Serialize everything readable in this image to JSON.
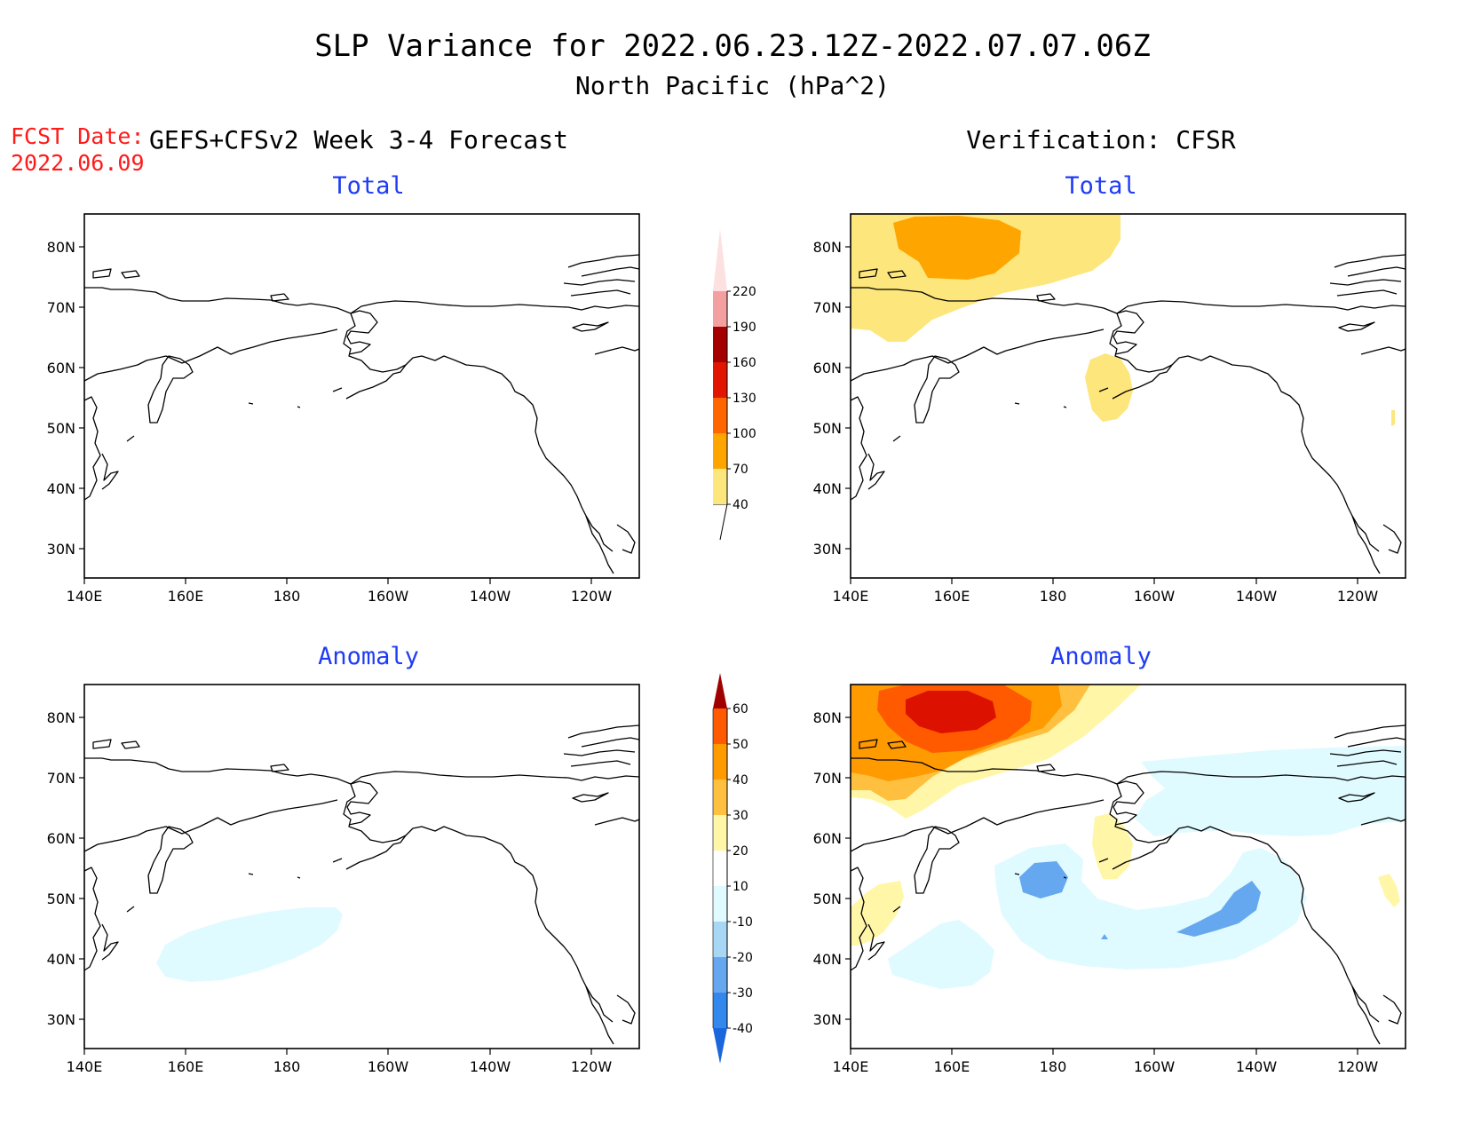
{
  "header": {
    "title": "SLP Variance for 2022.06.23.12Z-2022.07.07.06Z",
    "subtitle": "North Pacific (hPa^2)",
    "fcst_date_label": "FCST Date:",
    "fcst_date_value": "2022.06.09",
    "left_column_title": "GEFS+CFSv2 Week 3-4 Forecast",
    "right_column_title": "Verification: CFSR"
  },
  "panels": {
    "top_left_title": "Total",
    "top_right_title": "Total",
    "bottom_left_title": "Anomaly",
    "bottom_right_title": "Anomaly"
  },
  "axes": {
    "lon_labels": [
      "140E",
      "160E",
      "180",
      "160W",
      "140W",
      "120W"
    ],
    "lat_labels": [
      "80N",
      "70N",
      "60N",
      "50N",
      "40N",
      "30N"
    ]
  },
  "colorbars": {
    "total": {
      "labels": [
        "40",
        "70",
        "100",
        "130",
        "160",
        "190",
        "220"
      ],
      "colors": [
        "#fde67c",
        "#ffa500",
        "#ff6600",
        "#e11500",
        "#a50000",
        "#f4a0a0",
        "#fde0e0"
      ]
    },
    "anomaly": {
      "labels": [
        "-40",
        "-30",
        "-20",
        "-10",
        "10",
        "20",
        "30",
        "40",
        "50",
        "60"
      ],
      "colors": [
        "#1a66dd",
        "#3388ee",
        "#66a8f0",
        "#a8d6f5",
        "#e0fbff",
        "#ffffff",
        "#fff6a8",
        "#ffc040",
        "#ff9a00",
        "#ff5a00",
        "#dd1100",
        "#a00000"
      ]
    }
  },
  "colors": {
    "title_blue": "#1f3cf5",
    "fcst_red": "#ff1a1a"
  }
}
